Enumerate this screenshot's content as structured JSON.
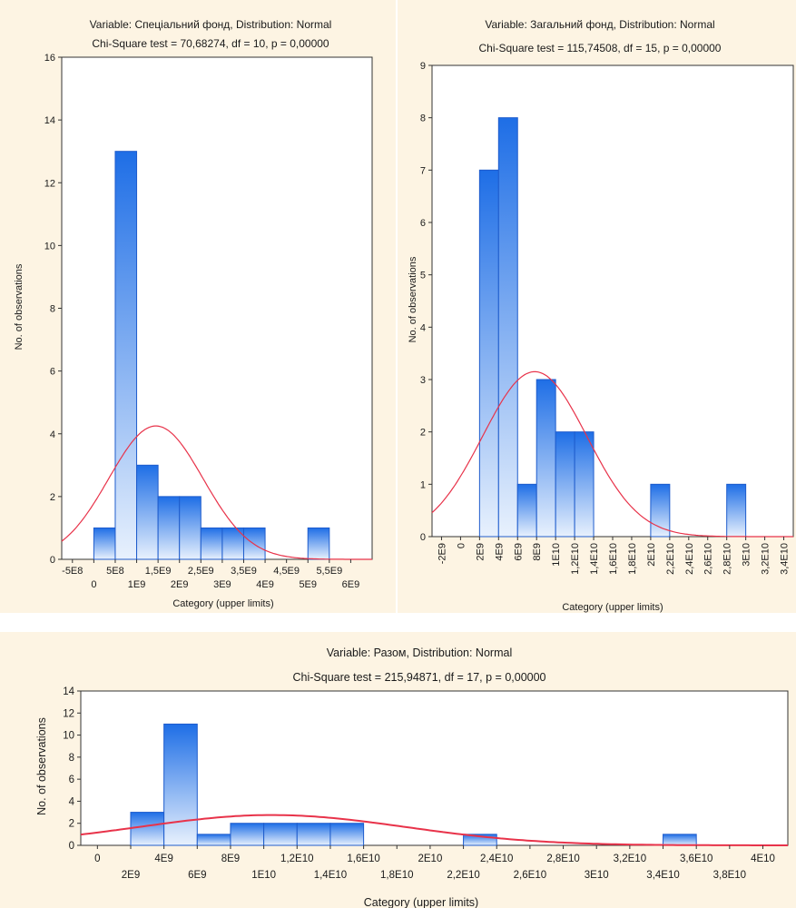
{
  "colors": {
    "bar_top": "#1e6ee6",
    "bar_bottom": "#e8f1fd",
    "bar_stroke": "#1e5ccc",
    "curve": "#e8334a",
    "panel_bg": "#fdf4e3"
  },
  "chart_data": [
    {
      "type": "bar",
      "title": "Variable: Спеціальний фонд, Distribution: Normal",
      "subtitle": "Chi-Square test = 70,68274, df = 10, p = 0,00000",
      "xlabel": "Category (upper limits)",
      "ylabel": "No. of observations",
      "ylim": [
        0,
        16
      ],
      "yticks": [
        "0",
        "2",
        "4",
        "6",
        "8",
        "10",
        "12",
        "14",
        "16"
      ],
      "xlim": [
        -750000000.0,
        6500000000.0
      ],
      "xticks_upper": [
        {
          "v": -500000000.0,
          "label": "-5E8"
        },
        {
          "v": 500000000.0,
          "label": "5E8"
        },
        {
          "v": 1500000000.0,
          "label": "1,5E9"
        },
        {
          "v": 2500000000.0,
          "label": "2,5E9"
        },
        {
          "v": 3500000000.0,
          "label": "3,5E9"
        },
        {
          "v": 4500000000.0,
          "label": "4,5E9"
        },
        {
          "v": 5500000000.0,
          "label": "5,5E9"
        }
      ],
      "xticks_lower": [
        {
          "v": 0,
          "label": "0"
        },
        {
          "v": 1000000000.0,
          "label": "1E9"
        },
        {
          "v": 2000000000.0,
          "label": "2E9"
        },
        {
          "v": 3000000000.0,
          "label": "3E9"
        },
        {
          "v": 4000000000.0,
          "label": "4E9"
        },
        {
          "v": 5000000000.0,
          "label": "5E9"
        },
        {
          "v": 6000000000.0,
          "label": "6E9"
        }
      ],
      "bin_width": 500000000.0,
      "bins": [
        {
          "upper": 500000000.0,
          "count": 1
        },
        {
          "upper": 1000000000.0,
          "count": 13
        },
        {
          "upper": 1500000000.0,
          "count": 3
        },
        {
          "upper": 2000000000.0,
          "count": 2
        },
        {
          "upper": 2500000000.0,
          "count": 2
        },
        {
          "upper": 3000000000.0,
          "count": 1
        },
        {
          "upper": 3500000000.0,
          "count": 1
        },
        {
          "upper": 4000000000.0,
          "count": 1
        },
        {
          "upper": 5500000000.0,
          "count": 1
        }
      ],
      "curve": {
        "mean": 1450000000.0,
        "sd": 1100000000.0,
        "peak": 4.25
      }
    },
    {
      "type": "bar",
      "title": "Variable: Загальний фонд, Distribution: Normal",
      "subtitle": "Chi-Square test = 115,74508, df = 15, p = 0,00000",
      "xlabel": "Category (upper limits)",
      "ylabel": "No. of observations",
      "ylim": [
        0,
        9
      ],
      "yticks": [
        "0",
        "1",
        "2",
        "3",
        "4",
        "5",
        "6",
        "7",
        "8",
        "9"
      ],
      "xlim": [
        -3000000000.0,
        35000000000.0
      ],
      "xticks": [
        {
          "v": -2000000000.0,
          "label": "-2E9"
        },
        {
          "v": 0,
          "label": "0"
        },
        {
          "v": 2000000000.0,
          "label": "2E9"
        },
        {
          "v": 4000000000.0,
          "label": "4E9"
        },
        {
          "v": 6000000000.0,
          "label": "6E9"
        },
        {
          "v": 8000000000.0,
          "label": "8E9"
        },
        {
          "v": 10000000000.0,
          "label": "1E10"
        },
        {
          "v": 12000000000.0,
          "label": "1,2E10"
        },
        {
          "v": 14000000000.0,
          "label": "1,4E10"
        },
        {
          "v": 16000000000.0,
          "label": "1,6E10"
        },
        {
          "v": 18000000000.0,
          "label": "1,8E10"
        },
        {
          "v": 20000000000.0,
          "label": "2E10"
        },
        {
          "v": 22000000000.0,
          "label": "2,2E10"
        },
        {
          "v": 24000000000.0,
          "label": "2,4E10"
        },
        {
          "v": 26000000000.0,
          "label": "2,6E10"
        },
        {
          "v": 28000000000.0,
          "label": "2,8E10"
        },
        {
          "v": 30000000000.0,
          "label": "3E10"
        },
        {
          "v": 32000000000.0,
          "label": "3,2E10"
        },
        {
          "v": 34000000000.0,
          "label": "3,4E10"
        }
      ],
      "bin_width": 2000000000.0,
      "bins": [
        {
          "upper": 4000000000.0,
          "count": 7
        },
        {
          "upper": 6000000000.0,
          "count": 8
        },
        {
          "upper": 8000000000.0,
          "count": 1
        },
        {
          "upper": 10000000000.0,
          "count": 3
        },
        {
          "upper": 12000000000.0,
          "count": 2
        },
        {
          "upper": 14000000000.0,
          "count": 2
        },
        {
          "upper": 22000000000.0,
          "count": 1
        },
        {
          "upper": 30000000000.0,
          "count": 1
        }
      ],
      "curve": {
        "mean": 7800000000.0,
        "sd": 5500000000.0,
        "peak": 3.15
      }
    },
    {
      "type": "bar",
      "title": "Variable: Разом, Distribution: Normal",
      "subtitle": "Chi-Square test = 215,94871, df = 17, p = 0,00000",
      "xlabel": "Category (upper limits)",
      "ylabel": "No. of observations",
      "ylim": [
        0,
        14
      ],
      "yticks": [
        "0",
        "2",
        "4",
        "6",
        "8",
        "10",
        "12",
        "14"
      ],
      "xlim": [
        -1000000000.0,
        41500000000.0
      ],
      "xticks_upper": [
        {
          "v": 0,
          "label": "0"
        },
        {
          "v": 4000000000.0,
          "label": "4E9"
        },
        {
          "v": 8000000000.0,
          "label": "8E9"
        },
        {
          "v": 12000000000.0,
          "label": "1,2E10"
        },
        {
          "v": 16000000000.0,
          "label": "1,6E10"
        },
        {
          "v": 20000000000.0,
          "label": "2E10"
        },
        {
          "v": 24000000000.0,
          "label": "2,4E10"
        },
        {
          "v": 28000000000.0,
          "label": "2,8E10"
        },
        {
          "v": 32000000000.0,
          "label": "3,2E10"
        },
        {
          "v": 36000000000.0,
          "label": "3,6E10"
        },
        {
          "v": 40000000000.0,
          "label": "4E10"
        }
      ],
      "xticks_lower": [
        {
          "v": 2000000000.0,
          "label": "2E9"
        },
        {
          "v": 6000000000.0,
          "label": "6E9"
        },
        {
          "v": 10000000000.0,
          "label": "1E10"
        },
        {
          "v": 14000000000.0,
          "label": "1,4E10"
        },
        {
          "v": 18000000000.0,
          "label": "1,8E10"
        },
        {
          "v": 22000000000.0,
          "label": "2,2E10"
        },
        {
          "v": 26000000000.0,
          "label": "2,6E10"
        },
        {
          "v": 30000000000.0,
          "label": "3E10"
        },
        {
          "v": 34000000000.0,
          "label": "3,4E10"
        },
        {
          "v": 38000000000.0,
          "label": "3,8E10"
        }
      ],
      "bin_width": 2000000000.0,
      "bins": [
        {
          "upper": 4000000000.0,
          "count": 3
        },
        {
          "upper": 6000000000.0,
          "count": 11
        },
        {
          "upper": 8000000000.0,
          "count": 1
        },
        {
          "upper": 10000000000.0,
          "count": 2
        },
        {
          "upper": 12000000000.0,
          "count": 2
        },
        {
          "upper": 14000000000.0,
          "count": 2
        },
        {
          "upper": 16000000000.0,
          "count": 2
        },
        {
          "upper": 24000000000.0,
          "count": 1
        },
        {
          "upper": 36000000000.0,
          "count": 1
        }
      ],
      "curve": {
        "mean": 10500000000.0,
        "sd": 8000000000.0,
        "peak": 2.75
      }
    }
  ]
}
